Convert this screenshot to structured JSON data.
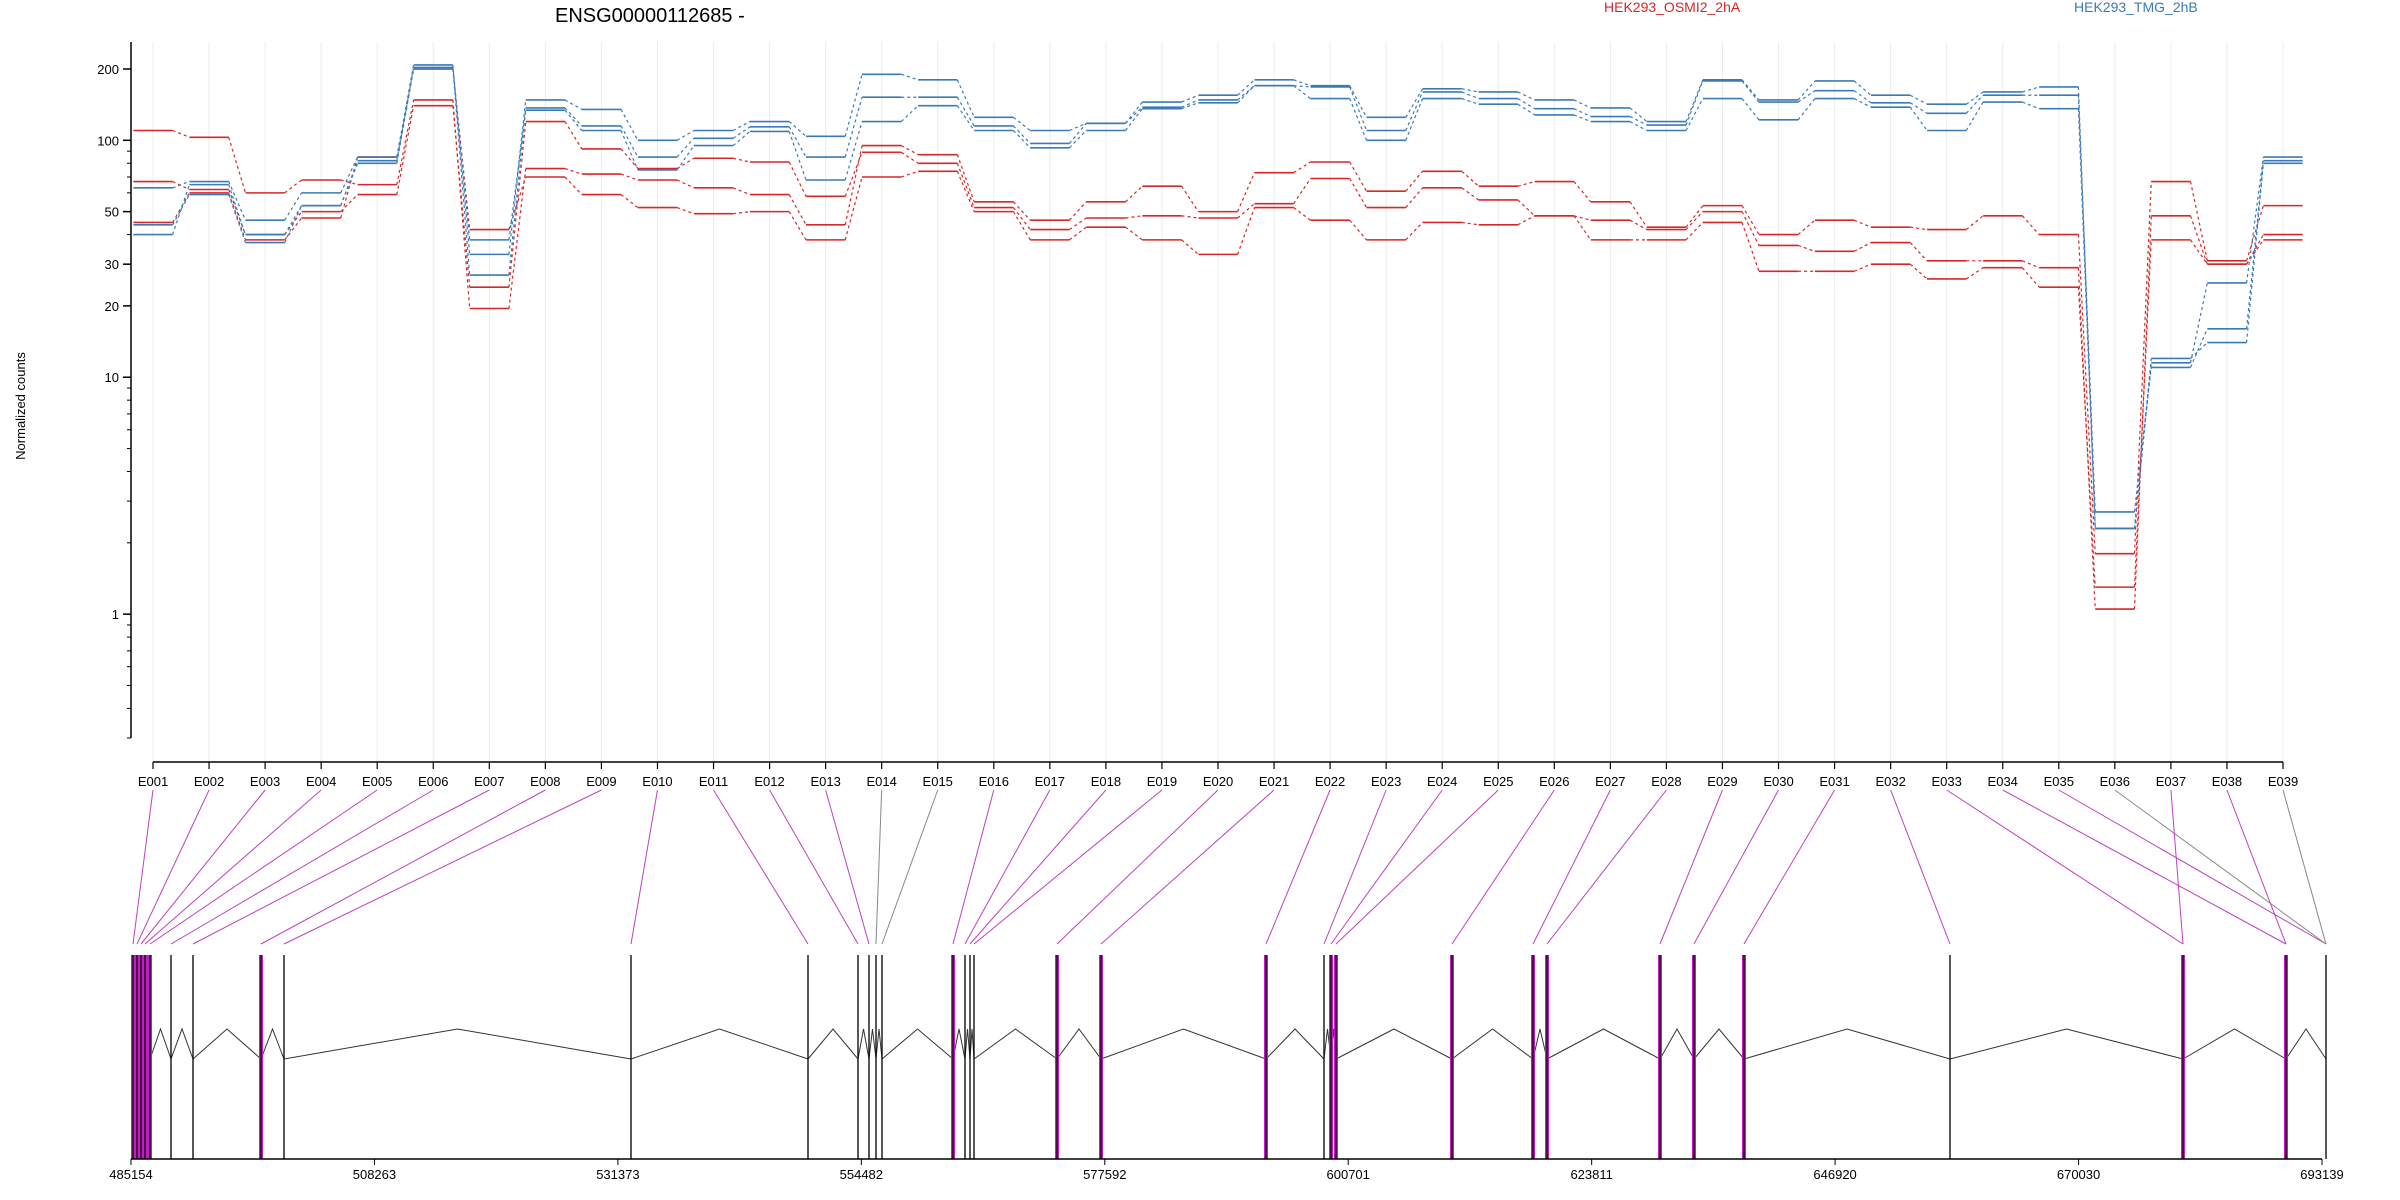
{
  "chart_data": {
    "type": "line",
    "title": "ENSG00000112685 -",
    "ylabel": "Normalized counts",
    "yscale": "log",
    "ylim": [
      0.3,
      260
    ],
    "y_ticks": [
      1,
      10,
      20,
      30,
      50,
      100,
      200
    ],
    "y_tick_labels": [
      "1",
      "10",
      "20",
      "30",
      "50",
      "100",
      "200"
    ],
    "categories": [
      "E001",
      "E002",
      "E003",
      "E004",
      "E005",
      "E006",
      "E007",
      "E008",
      "E009",
      "E010",
      "E011",
      "E012",
      "E013",
      "E014",
      "E015",
      "E016",
      "E017",
      "E018",
      "E019",
      "E020",
      "E021",
      "E022",
      "E023",
      "E024",
      "E025",
      "E026",
      "E027",
      "E028",
      "E029",
      "E030",
      "E031",
      "E032",
      "E033",
      "E034",
      "E035",
      "E036",
      "E037",
      "E038",
      "E039"
    ],
    "legend": [
      {
        "name": "HEK293_OSMI2_2hA",
        "color": "#d62728"
      },
      {
        "name": "HEK293_TMG_2hB",
        "color": "#3b7ab8"
      }
    ],
    "series": [
      {
        "group": "HEK293_OSMI2_2hA",
        "color": "#d62728",
        "values": [
          110,
          103,
          60,
          68,
          65,
          148,
          19.5,
          76,
          72,
          68,
          63,
          59,
          44,
          95,
          87,
          55,
          46,
          55,
          64,
          50,
          73,
          81,
          61,
          74,
          64,
          67,
          55,
          43,
          53,
          40,
          46,
          43,
          42,
          48,
          40,
          1.8,
          67,
          31,
          53
        ]
      },
      {
        "group": "HEK293_OSMI2_2hA",
        "color": "#d62728",
        "values": [
          67,
          62,
          40,
          50,
          59,
          140,
          24,
          120,
          92,
          76,
          84,
          81,
          58,
          89,
          80,
          52,
          42,
          47,
          48,
          47,
          54,
          69,
          52,
          63,
          56,
          48,
          46,
          42,
          50,
          36,
          34,
          37,
          31,
          31,
          29,
          1.05,
          48,
          30,
          40
        ]
      },
      {
        "group": "HEK293_OSMI2_2hA",
        "color": "#d62728",
        "values": [
          45,
          60,
          38,
          47,
          85,
          200,
          42,
          70,
          59,
          52,
          49,
          50,
          38,
          70,
          74,
          50,
          38,
          43,
          38,
          33,
          52,
          46,
          38,
          45,
          44,
          48,
          38,
          38,
          45,
          28,
          28,
          30,
          26,
          29,
          24,
          1.3,
          38,
          30,
          38
        ]
      },
      {
        "group": "HEK293_TMG_2hB",
        "color": "#3b7ab8",
        "values": [
          63,
          67,
          46,
          60,
          85,
          208,
          33,
          148,
          135,
          100,
          110,
          120,
          104,
          190,
          180,
          125,
          110,
          118,
          145,
          155,
          180,
          170,
          125,
          165,
          160,
          148,
          137,
          120,
          180,
          148,
          178,
          155,
          142,
          160,
          168,
          2.3,
          11.5,
          25,
          85
        ]
      },
      {
        "group": "HEK293_TMG_2hB",
        "color": "#3b7ab8",
        "values": [
          40,
          65,
          40,
          53,
          82,
          203,
          27,
          137,
          115,
          85,
          102,
          114,
          85,
          152,
          152,
          115,
          97,
          118,
          138,
          148,
          170,
          168,
          110,
          160,
          150,
          136,
          126,
          116,
          178,
          145,
          162,
          144,
          130,
          155,
          155,
          2.7,
          11,
          16,
          82
        ]
      },
      {
        "group": "HEK293_TMG_2hB",
        "color": "#3b7ab8",
        "values": [
          44,
          59,
          37,
          53,
          80,
          200,
          38,
          134,
          110,
          75,
          95,
          109,
          68,
          120,
          140,
          110,
          93,
          110,
          136,
          144,
          170,
          150,
          100,
          150,
          142,
          128,
          120,
          110,
          150,
          122,
          150,
          138,
          110,
          145,
          136,
          2.3,
          12,
          14,
          80
        ]
      }
    ],
    "gene_model": {
      "coord_ticks": [
        "485154",
        "508263",
        "531373",
        "554482",
        "577592",
        "600701",
        "623811",
        "646920",
        "670030",
        "693139"
      ],
      "coord_range": [
        485154,
        693139
      ]
    }
  },
  "colors": {
    "osmi": "#d62728",
    "tmg": "#3b7ab8",
    "connector_hl": "#bf40bf",
    "connector": "#888888",
    "exon_hl": "#c61cc6"
  }
}
